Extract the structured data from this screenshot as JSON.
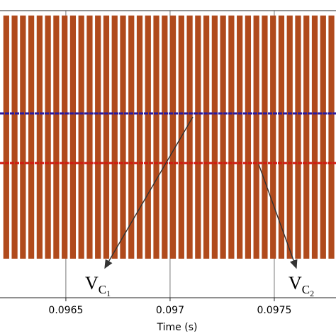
{
  "chart_data": {
    "type": "pulse",
    "x_label": "Time (s)",
    "xlim": [
      0.096184,
      0.097796
    ],
    "xticks": [
      0.0965,
      0.097,
      0.0975
    ],
    "ylim": [
      0,
      100
    ],
    "pulses": {
      "color": "#b04a1c",
      "high": 98.3,
      "low": 13.6,
      "starts": [
        0.0962,
        0.09624,
        0.09628,
        0.09632,
        0.09636,
        0.0964,
        0.09644,
        0.09648,
        0.09652,
        0.09656,
        0.0966,
        0.09664,
        0.09668,
        0.09672,
        0.09676,
        0.0968,
        0.09684,
        0.09688,
        0.09692,
        0.09696,
        0.097,
        0.09704,
        0.09708,
        0.09712,
        0.09716,
        0.0972,
        0.09724,
        0.09728,
        0.09732,
        0.09736,
        0.0974,
        0.09744,
        0.09748,
        0.09752,
        0.09756,
        0.0976,
        0.09764,
        0.09768,
        0.09772,
        0.09776
      ],
      "ends": [
        0.096228,
        0.096268,
        0.096308,
        0.096348,
        0.096388,
        0.096428,
        0.096468,
        0.096508,
        0.096548,
        0.096588,
        0.096628,
        0.096668,
        0.096708,
        0.096748,
        0.096788,
        0.096828,
        0.096868,
        0.096908,
        0.096948,
        0.096988,
        0.097028,
        0.097068,
        0.097108,
        0.097148,
        0.097188,
        0.097228,
        0.097268,
        0.097308,
        0.097348,
        0.097388,
        0.097428,
        0.097468,
        0.097508,
        0.097548,
        0.097588,
        0.097628,
        0.097668,
        0.097708,
        0.097748,
        0.097788
      ]
    },
    "series": [
      {
        "color": "#2a1aa0",
        "x": [
          0.096184,
          0.097796
        ],
        "values": [
          64.2,
          64.2
        ]
      },
      {
        "color": "#d01a10",
        "x": [
          0.096184,
          0.097796
        ],
        "values": [
          46.9,
          46.9
        ]
      }
    ],
    "annotations": [
      {
        "main": "V",
        "sub": "C",
        "subsub": "1"
      },
      {
        "main": "V",
        "sub": "C",
        "subsub": "2"
      }
    ]
  }
}
